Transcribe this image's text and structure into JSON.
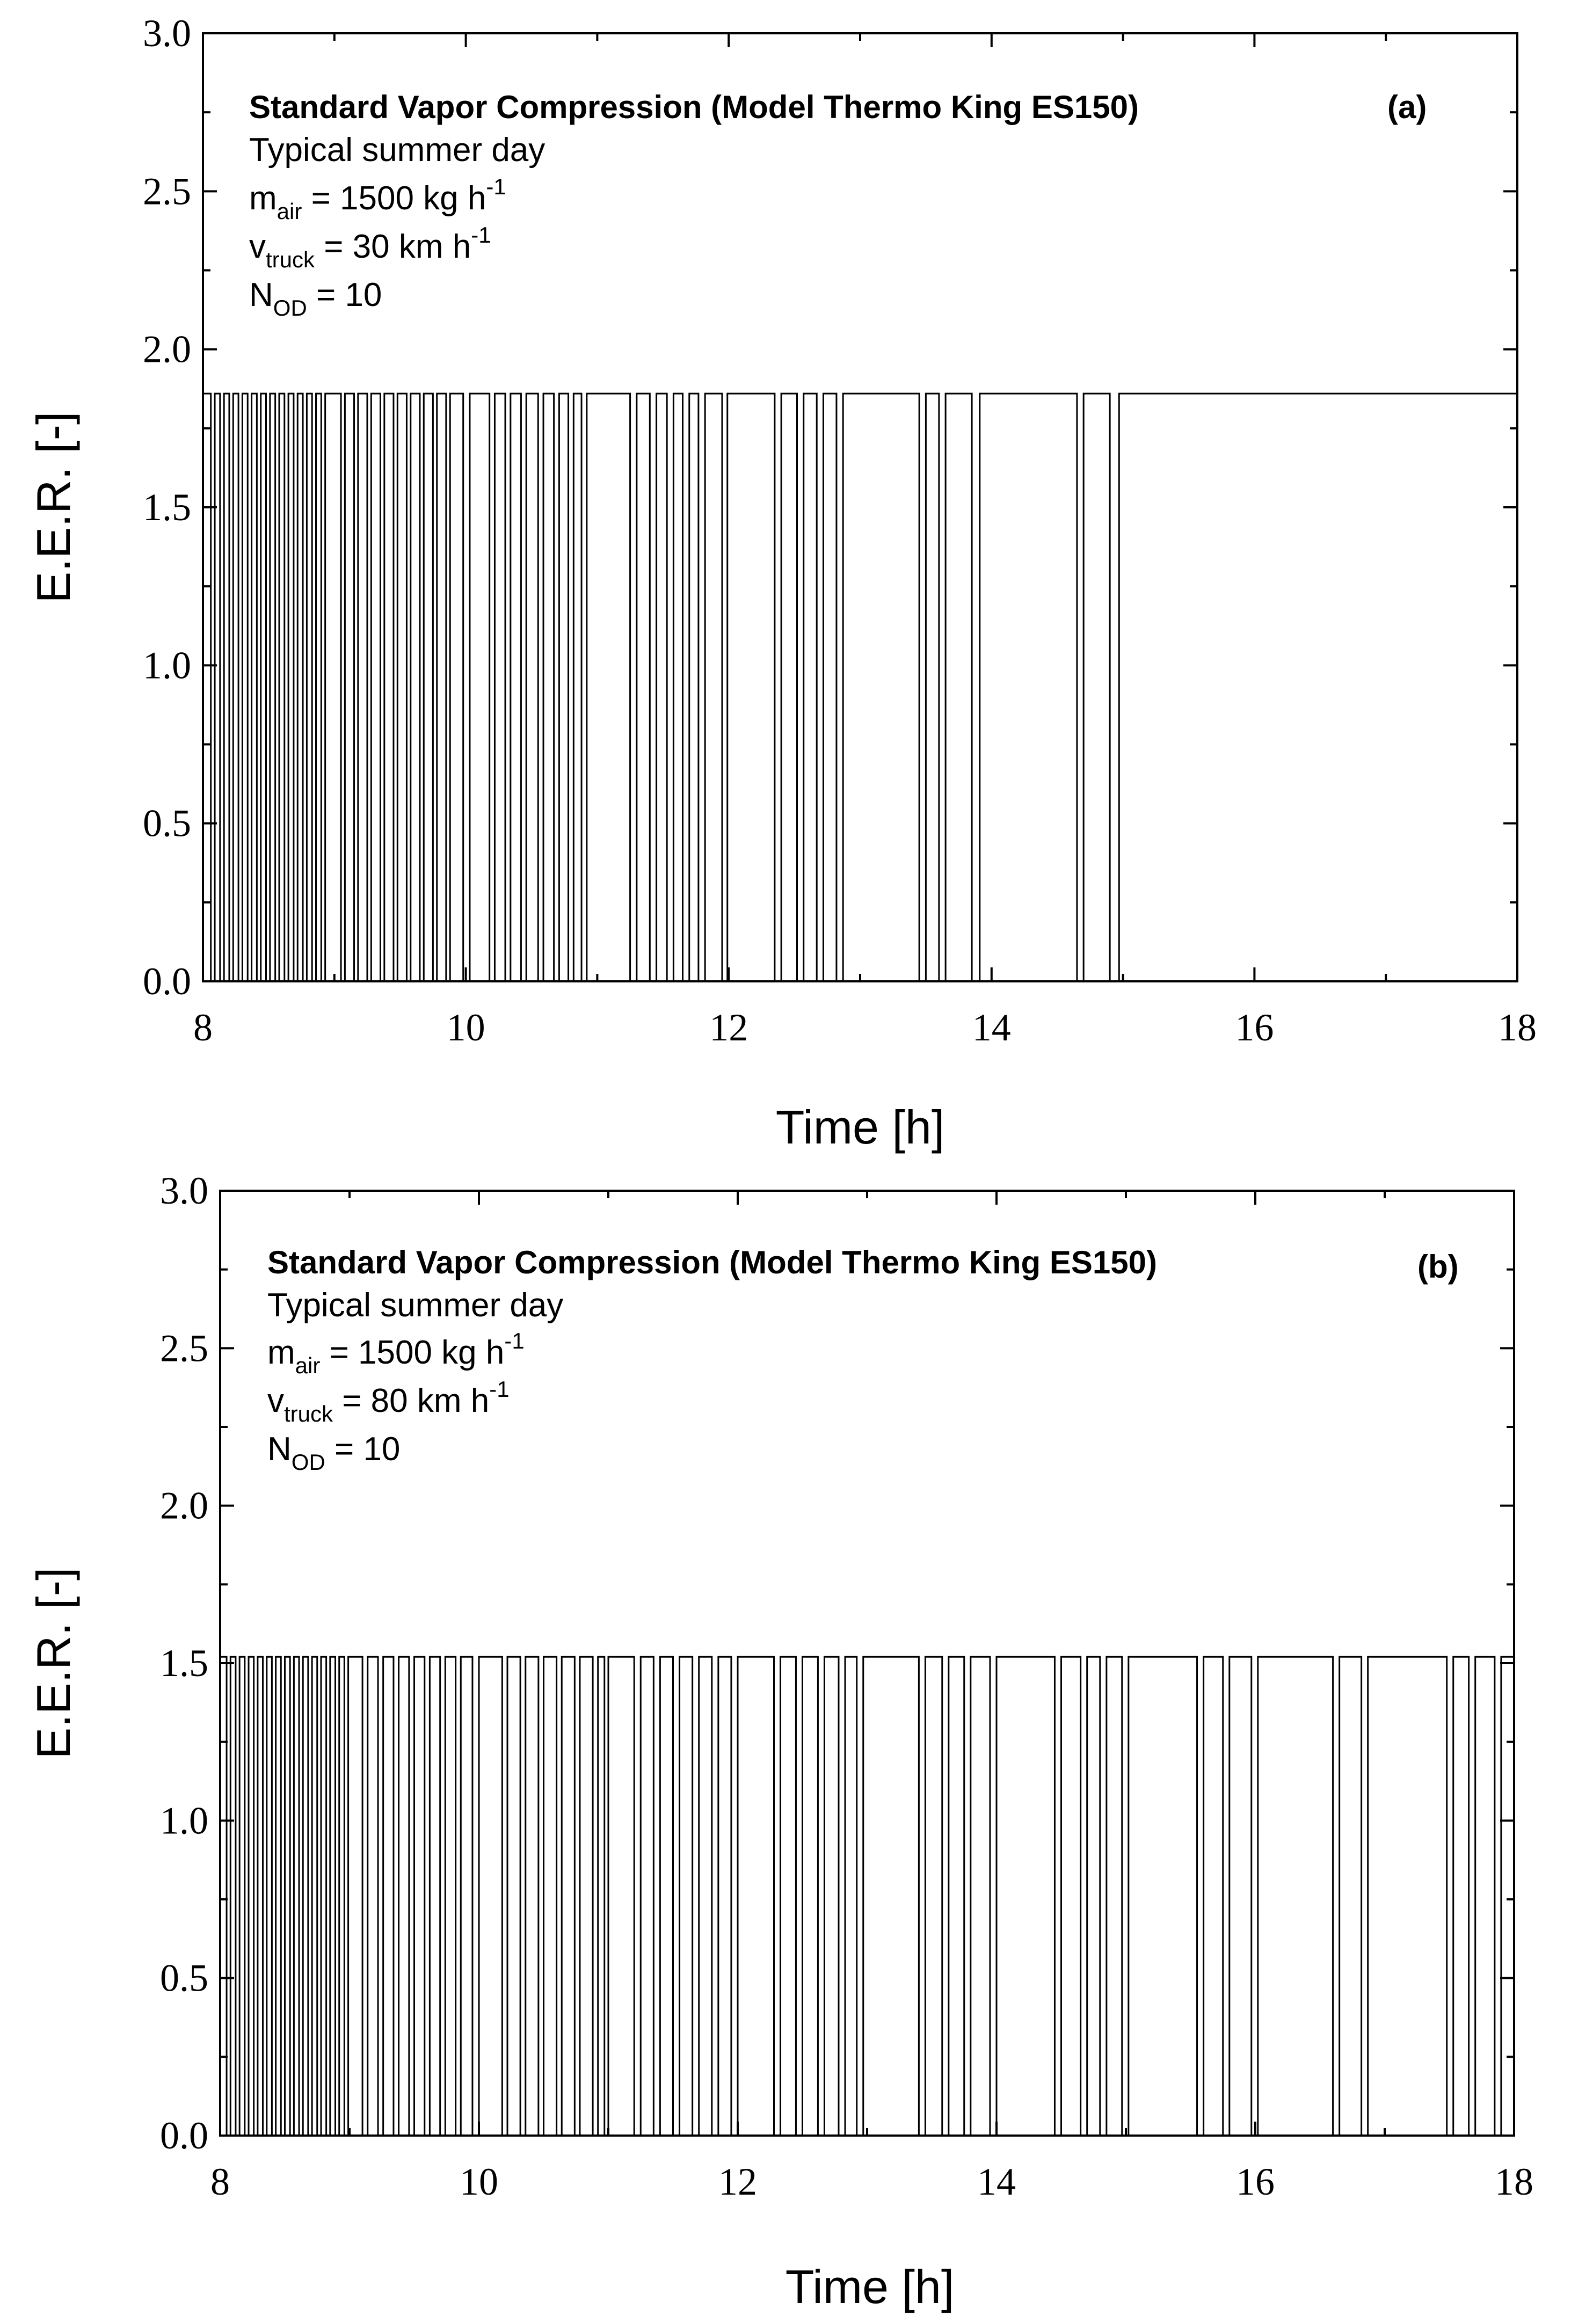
{
  "chart_data": [
    {
      "type": "line",
      "panel_label": "(a)",
      "title": "Standard Vapor   Compression (Model Thermo King ES150)",
      "annotations": {
        "line1": "Typical summer day",
        "mair": {
          "base": "m",
          "sub": "air",
          "text": " = 1500 kg h",
          "sup": "-1"
        },
        "vtruck": {
          "base": "v",
          "sub": "truck",
          "text": " = 30 km h",
          "sup": "-1"
        },
        "nod": {
          "base": "N",
          "sub": "OD",
          "text": " = 10"
        }
      },
      "xlabel": "Time [h]",
      "ylabel": "E.E.R. [-]",
      "xlim": [
        8,
        18
      ],
      "ylim": [
        0,
        3
      ],
      "xticks": [
        "8",
        "10",
        "12",
        "14",
        "16",
        "18"
      ],
      "yticks": [
        "0.0",
        "0.5",
        "1.0",
        "1.5",
        "2.0",
        "2.5",
        "3.0"
      ],
      "on_value": 1.86,
      "off_intervals": [
        [
          8.06,
          8.09
        ],
        [
          8.13,
          8.16
        ],
        [
          8.2,
          8.23
        ],
        [
          8.27,
          8.3
        ],
        [
          8.34,
          8.37
        ],
        [
          8.41,
          8.44
        ],
        [
          8.48,
          8.51
        ],
        [
          8.55,
          8.58
        ],
        [
          8.62,
          8.65
        ],
        [
          8.69,
          8.72
        ],
        [
          8.76,
          8.79
        ],
        [
          8.83,
          8.86
        ],
        [
          8.9,
          8.93
        ],
        [
          9.05,
          9.08
        ],
        [
          9.15,
          9.18
        ],
        [
          9.25,
          9.28
        ],
        [
          9.35,
          9.38
        ],
        [
          9.45,
          9.48
        ],
        [
          9.55,
          9.58
        ],
        [
          9.65,
          9.68
        ],
        [
          9.75,
          9.78
        ],
        [
          9.85,
          9.88
        ],
        [
          9.98,
          10.03
        ],
        [
          10.18,
          10.22
        ],
        [
          10.3,
          10.34
        ],
        [
          10.42,
          10.46
        ],
        [
          10.55,
          10.59
        ],
        [
          10.67,
          10.71
        ],
        [
          10.78,
          10.82
        ],
        [
          10.88,
          10.92
        ],
        [
          11.25,
          11.3
        ],
        [
          11.4,
          11.45
        ],
        [
          11.53,
          11.58
        ],
        [
          11.65,
          11.7
        ],
        [
          11.77,
          11.82
        ],
        [
          11.95,
          11.99
        ],
        [
          12.35,
          12.4
        ],
        [
          12.52,
          12.57
        ],
        [
          12.67,
          12.72
        ],
        [
          12.82,
          12.87
        ],
        [
          13.45,
          13.5
        ],
        [
          13.6,
          13.65
        ],
        [
          13.85,
          13.91
        ],
        [
          14.65,
          14.7
        ],
        [
          14.9,
          14.97
        ]
      ]
    },
    {
      "type": "line",
      "panel_label": "(b)",
      "title": "Standard Vapor   Compression (Model Thermo King ES150)",
      "annotations": {
        "line1": "Typical summer day",
        "mair": {
          "base": "m",
          "sub": "air",
          "text": " = 1500 kg h",
          "sup": "-1"
        },
        "vtruck": {
          "base": "v",
          "sub": "truck",
          "text": " = 80 km h",
          "sup": "-1"
        },
        "nod": {
          "base": "N",
          "sub": "OD",
          "text": " = 10"
        }
      },
      "xlabel": "Time [h]",
      "ylabel": "E.E.R. [-]",
      "xlim": [
        8,
        18
      ],
      "ylim": [
        0,
        3
      ],
      "xticks": [
        "8",
        "10",
        "12",
        "14",
        "16",
        "18"
      ],
      "yticks": [
        "0.0",
        "0.5",
        "1.0",
        "1.5",
        "2.0",
        "2.5",
        "3.0"
      ],
      "on_value": 1.52,
      "off_intervals": [
        [
          8.05,
          8.08
        ],
        [
          8.12,
          8.15
        ],
        [
          8.19,
          8.22
        ],
        [
          8.26,
          8.29
        ],
        [
          8.33,
          8.36
        ],
        [
          8.4,
          8.43
        ],
        [
          8.47,
          8.5
        ],
        [
          8.54,
          8.57
        ],
        [
          8.61,
          8.64
        ],
        [
          8.68,
          8.71
        ],
        [
          8.75,
          8.78
        ],
        [
          8.82,
          8.85
        ],
        [
          8.89,
          8.92
        ],
        [
          8.96,
          8.99
        ],
        [
          9.1,
          9.14
        ],
        [
          9.22,
          9.26
        ],
        [
          9.34,
          9.38
        ],
        [
          9.46,
          9.5
        ],
        [
          9.58,
          9.62
        ],
        [
          9.7,
          9.74
        ],
        [
          9.82,
          9.86
        ],
        [
          9.95,
          10.0
        ],
        [
          10.18,
          10.22
        ],
        [
          10.32,
          10.36
        ],
        [
          10.46,
          10.5
        ],
        [
          10.6,
          10.64
        ],
        [
          10.74,
          10.78
        ],
        [
          10.88,
          10.92
        ],
        [
          10.97,
          11.0
        ],
        [
          11.2,
          11.25
        ],
        [
          11.35,
          11.4
        ],
        [
          11.5,
          11.55
        ],
        [
          11.65,
          11.7
        ],
        [
          11.8,
          11.85
        ],
        [
          11.95,
          12.0
        ],
        [
          12.28,
          12.33
        ],
        [
          12.45,
          12.5
        ],
        [
          12.62,
          12.67
        ],
        [
          12.78,
          12.83
        ],
        [
          12.92,
          12.97
        ],
        [
          13.4,
          13.45
        ],
        [
          13.58,
          13.63
        ],
        [
          13.75,
          13.8
        ],
        [
          13.95,
          14.0
        ],
        [
          14.45,
          14.5
        ],
        [
          14.65,
          14.7
        ],
        [
          14.8,
          14.85
        ],
        [
          14.97,
          15.02
        ],
        [
          15.55,
          15.6
        ],
        [
          15.75,
          15.8
        ],
        [
          15.97,
          16.02
        ],
        [
          16.6,
          16.65
        ],
        [
          16.82,
          16.87
        ],
        [
          17.48,
          17.53
        ],
        [
          17.65,
          17.7
        ],
        [
          17.85,
          17.9
        ]
      ]
    }
  ]
}
